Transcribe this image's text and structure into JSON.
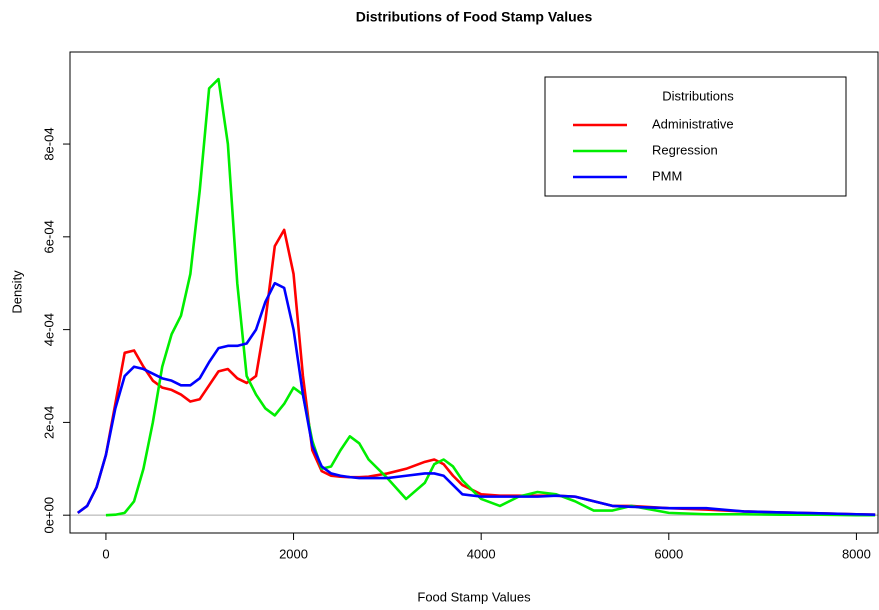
{
  "chart_data": {
    "type": "line",
    "title": "Distributions of Food Stamp Values",
    "x_label": "Food Stamp Values",
    "y_label": "Density",
    "x": [
      -300,
      -200,
      -100,
      0,
      100,
      200,
      300,
      400,
      500,
      600,
      700,
      800,
      900,
      1000,
      1100,
      1200,
      1300,
      1400,
      1500,
      1600,
      1700,
      1800,
      1900,
      2000,
      2100,
      2200,
      2300,
      2400,
      2500,
      2600,
      2700,
      2800,
      3000,
      3200,
      3400,
      3500,
      3600,
      3700,
      3800,
      4000,
      4200,
      4400,
      4600,
      4800,
      5000,
      5200,
      5400,
      5600,
      6000,
      6400,
      6800,
      7200,
      7600,
      8000,
      8200
    ],
    "series": [
      {
        "name": "Administrative",
        "color": "#ff0000",
        "values": [
          5e-06,
          2e-05,
          6e-05,
          0.00013,
          0.00024,
          0.00035,
          0.000355,
          0.00032,
          0.00029,
          0.000275,
          0.00027,
          0.00026,
          0.000245,
          0.00025,
          0.00028,
          0.00031,
          0.000315,
          0.000295,
          0.000285,
          0.0003,
          0.00042,
          0.00058,
          0.000615,
          0.00052,
          0.0003,
          0.00014,
          9.5e-05,
          8.5e-05,
          8.3e-05,
          8.2e-05,
          8.2e-05,
          8.3e-05,
          9e-05,
          0.0001,
          0.000115,
          0.00012,
          0.00011,
          8.5e-05,
          6.5e-05,
          4.5e-05,
          4.2e-05,
          4.2e-05,
          4.2e-05,
          4.2e-05,
          4e-05,
          3e-05,
          2e-05,
          2e-05,
          1.5e-05,
          1.2e-05,
          8e-06,
          6e-06,
          4e-06,
          2e-06,
          1e-06
        ]
      },
      {
        "name": "Regression",
        "color": "#00ee00",
        "values": [
          null,
          null,
          null,
          0,
          1e-06,
          5e-06,
          3e-05,
          0.0001,
          0.0002,
          0.00032,
          0.00039,
          0.00043,
          0.00052,
          0.0007,
          0.00092,
          0.00094,
          0.0008,
          0.0005,
          0.0003,
          0.00026,
          0.00023,
          0.000215,
          0.00024,
          0.000275,
          0.00026,
          0.00016,
          0.0001,
          0.000105,
          0.00014,
          0.00017,
          0.000155,
          0.00012,
          8e-05,
          3.5e-05,
          7e-05,
          0.00011,
          0.00012,
          0.000105,
          7.5e-05,
          3.5e-05,
          2e-05,
          4e-05,
          5e-05,
          4.5e-05,
          3e-05,
          1e-05,
          1e-05,
          2e-05,
          5e-06,
          2e-06,
          2e-06,
          1e-06,
          1e-06,
          0,
          0
        ]
      },
      {
        "name": "PMM",
        "color": "#0000ff",
        "values": [
          5e-06,
          2e-05,
          6e-05,
          0.00013,
          0.00023,
          0.0003,
          0.00032,
          0.000315,
          0.000305,
          0.000295,
          0.00029,
          0.00028,
          0.00028,
          0.000295,
          0.00033,
          0.00036,
          0.000365,
          0.000365,
          0.00037,
          0.0004,
          0.00046,
          0.0005,
          0.00049,
          0.0004,
          0.00026,
          0.00015,
          0.000105,
          9e-05,
          8.5e-05,
          8.2e-05,
          8e-05,
          8e-05,
          8e-05,
          8.5e-05,
          9e-05,
          9e-05,
          8.5e-05,
          6.5e-05,
          4.5e-05,
          4e-05,
          4e-05,
          4e-05,
          4e-05,
          4.2e-05,
          4e-05,
          3e-05,
          2e-05,
          1.8e-05,
          1.5e-05,
          1.5e-05,
          8e-06,
          6e-06,
          4e-06,
          2e-06,
          1e-06
        ]
      }
    ],
    "xlim": [
      -383,
      8230
    ],
    "ylim": [
      -3.84e-05,
      0.0009984
    ],
    "xticks": [
      0,
      2000,
      4000,
      6000,
      8000
    ],
    "yticks": [
      {
        "value": 0,
        "label": "0e+00"
      },
      {
        "value": 0.0002,
        "label": "2e-04"
      },
      {
        "value": 0.0004,
        "label": "4e-04"
      },
      {
        "value": 0.0006,
        "label": "6e-04"
      },
      {
        "value": 0.0008,
        "label": "8e-04"
      }
    ],
    "zero_line": true,
    "legend": {
      "title": "Distributions",
      "position": "top-right"
    }
  }
}
